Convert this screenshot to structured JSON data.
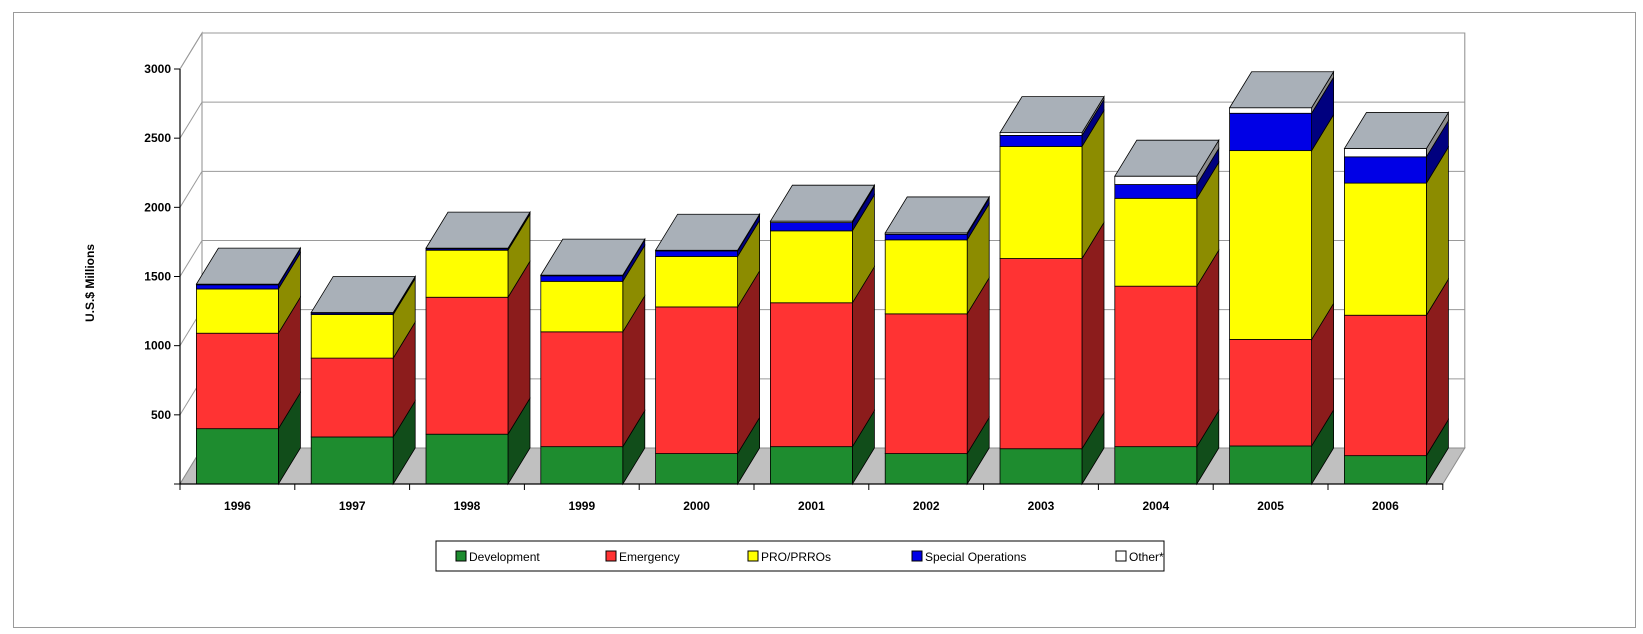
{
  "chart_data": {
    "type": "bar",
    "stacked": true,
    "three_d": true,
    "title": "",
    "xlabel": "",
    "ylabel": "U.S.$ Millions",
    "ylim": [
      0,
      3000
    ],
    "yticks": [
      500,
      1000,
      1500,
      2000,
      2500,
      3000
    ],
    "grid": true,
    "legend_position": "bottom",
    "categories": [
      "1996",
      "1997",
      "1998",
      "1999",
      "2000",
      "2001",
      "2002",
      "2003",
      "2004",
      "2005",
      "2006"
    ],
    "series": [
      {
        "name": "Development",
        "color": "#1e8c2f",
        "values": [
          400,
          340,
          360,
          270,
          220,
          270,
          220,
          255,
          270,
          275,
          205
        ]
      },
      {
        "name": "Emergency",
        "color": "#ff3333",
        "values": [
          690,
          570,
          990,
          830,
          1060,
          1040,
          1010,
          1375,
          1160,
          770,
          1015
        ]
      },
      {
        "name": "PRO/PRROs",
        "color": "#ffff00",
        "values": [
          320,
          315,
          340,
          365,
          365,
          520,
          535,
          810,
          635,
          1365,
          955
        ]
      },
      {
        "name": "Special Operations",
        "color": "#0000e6",
        "values": [
          30,
          10,
          10,
          40,
          40,
          60,
          40,
          80,
          100,
          270,
          190
        ]
      },
      {
        "name": "Other",
        "color": "#ffffff",
        "values": [
          5,
          5,
          5,
          5,
          5,
          10,
          10,
          20,
          60,
          40,
          60
        ]
      }
    ],
    "legend_labels": [
      "Development",
      "Emergency",
      "PRO/PRROs",
      "Special Operations",
      "Other"
    ],
    "legend_suffix": [
      "",
      "",
      "",
      "",
      "*"
    ],
    "cap_color": "#a9b0b8"
  }
}
